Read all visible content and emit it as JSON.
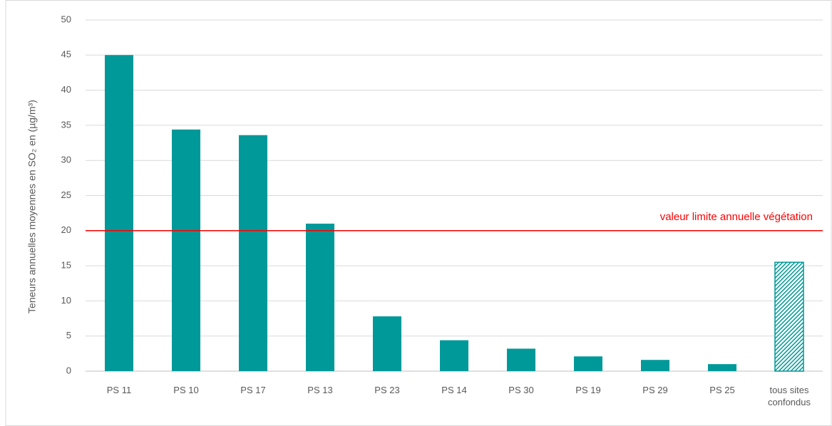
{
  "chart_data": {
    "type": "bar",
    "y_axis_label": "Teneurs annuelles moyennes en SO₂ en (µg/m³)",
    "categories": [
      "PS 11",
      "PS 10",
      "PS 17",
      "PS 13",
      "PS 23",
      "PS 14",
      "PS 30",
      "PS 19",
      "PS 29",
      "PS 25",
      "tous sites confondus"
    ],
    "values": [
      45,
      34.4,
      33.6,
      21,
      7.8,
      4.4,
      3.2,
      2.1,
      1.6,
      1.0,
      15.5
    ],
    "hatched": [
      false,
      false,
      false,
      false,
      false,
      false,
      false,
      false,
      false,
      false,
      true
    ],
    "color": "#009999",
    "ylim": [
      0,
      50
    ],
    "yticks": [
      0,
      5,
      10,
      15,
      20,
      25,
      30,
      35,
      40,
      45,
      50
    ],
    "grid": true,
    "reference_line": {
      "value": 20,
      "label": "valeur limite annuelle végétation",
      "color": "#ff0000"
    }
  }
}
